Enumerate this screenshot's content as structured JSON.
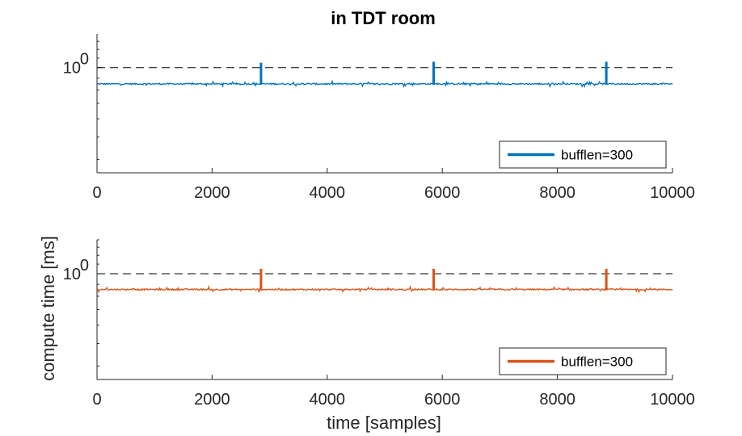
{
  "figure": {
    "title": "in TDT room",
    "ylabel": "compute time [ms]",
    "xlabel": "time [samples]"
  },
  "chart_data": [
    {
      "type": "line",
      "title": "in TDT room",
      "xlabel": "",
      "ylabel": "",
      "y_scale": "log",
      "xlim": [
        0,
        10000
      ],
      "ylim": [
        0.35,
        1.4
      ],
      "x_ticks": [
        0,
        2000,
        4000,
        6000,
        8000,
        10000
      ],
      "x_tick_labels": [
        "0",
        "2000",
        "4000",
        "6000",
        "8000",
        "10000"
      ],
      "y_ticks": [
        1
      ],
      "y_tick_labels": [
        "10",
        "0"
      ],
      "reference_line": {
        "y": 1,
        "style": "dashed",
        "color": "#000000"
      },
      "legend": {
        "position": "bottom-right",
        "entries": [
          "bufflen=300"
        ]
      },
      "series": [
        {
          "name": "bufflen=300",
          "color": "#0072BD",
          "baseline": 0.85,
          "spikes": [
            {
              "x": 2850,
              "y": 1.05
            },
            {
              "x": 5850,
              "y": 1.06
            },
            {
              "x": 8850,
              "y": 1.06
            }
          ]
        }
      ]
    },
    {
      "type": "line",
      "title": "",
      "xlabel": "time [samples]",
      "ylabel": "compute time [ms]",
      "y_scale": "log",
      "xlim": [
        0,
        10000
      ],
      "ylim": [
        0.35,
        1.4
      ],
      "x_ticks": [
        0,
        2000,
        4000,
        6000,
        8000,
        10000
      ],
      "x_tick_labels": [
        "0",
        "2000",
        "4000",
        "6000",
        "8000",
        "10000"
      ],
      "y_ticks": [
        1
      ],
      "y_tick_labels": [
        "10",
        "0"
      ],
      "reference_line": {
        "y": 1,
        "style": "dashed",
        "color": "#000000"
      },
      "legend": {
        "position": "bottom-right",
        "entries": [
          "bufflen=300"
        ]
      },
      "series": [
        {
          "name": "bufflen=300",
          "color": "#D95319",
          "baseline": 0.855,
          "spikes": [
            {
              "x": 2850,
              "y": 1.05
            },
            {
              "x": 5850,
              "y": 1.05
            },
            {
              "x": 8850,
              "y": 1.05
            }
          ]
        }
      ]
    }
  ]
}
